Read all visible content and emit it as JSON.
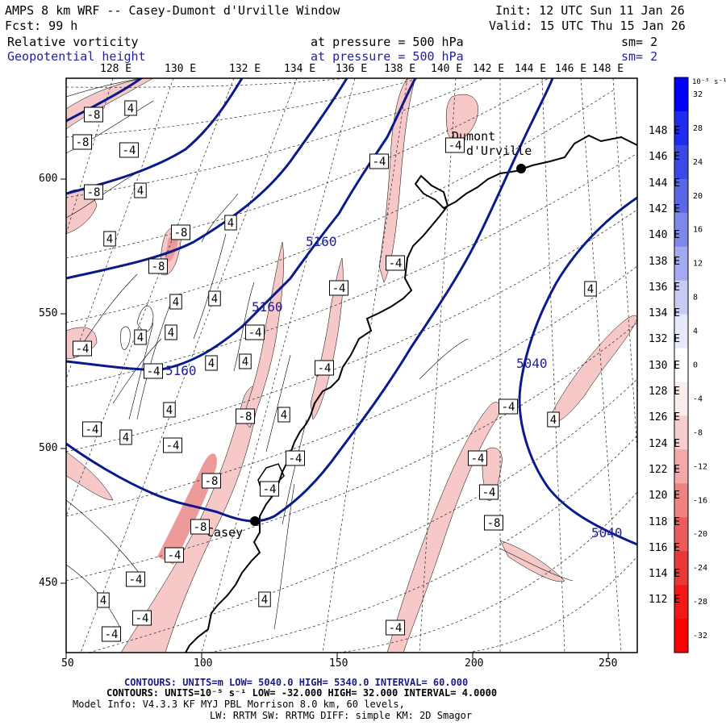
{
  "header": {
    "title": "AMPS 8 km WRF -- Casey-Dumont d'Urville Window",
    "forecast": "Fcst:    99 h",
    "init": "Init: 12 UTC Sun 11 Jan 26",
    "valid": "Valid: 15 UTC Thu 15 Jan 26",
    "field1_name": "Relative vorticity",
    "field1_level": "at pressure =  500 hPa",
    "field1_sm": "sm= 2",
    "field2_name": "Geopotential height",
    "field2_level": "at pressure =  500 hPa",
    "field2_sm": "sm= 2"
  },
  "map": {
    "top_lon_labels": [
      "128 E",
      "130 E",
      "132 E",
      "134 E",
      "136 E",
      "138 E",
      "140 E",
      "142 E",
      "144 E",
      "146 E",
      "148 E"
    ],
    "right_lon_labels": [
      "148 E",
      "146 E",
      "144 E",
      "142 E",
      "140 E",
      "138 E",
      "136 E",
      "134 E",
      "132 E",
      "130 E",
      "128 E",
      "126 E",
      "124 E",
      "122 E",
      "120 E",
      "118 E",
      "116 E",
      "114 E",
      "112 E"
    ],
    "x_ticks": [
      "50",
      "100",
      "150",
      "200",
      "250"
    ],
    "y_ticks": [
      "600",
      "550",
      "500",
      "450"
    ],
    "stations": [
      {
        "name": "Dumont d'Urville"
      },
      {
        "name": "Casey"
      }
    ],
    "height_labels": [
      "5160",
      "5160",
      "5160",
      "5040",
      "5040"
    ],
    "vorticity_labels": [
      "-8",
      "-8",
      "-8",
      "-4",
      "4",
      "4",
      "4",
      "-8",
      "-8",
      "4",
      "4",
      "4",
      "-4",
      "4",
      "-4",
      "4",
      "4",
      "-4",
      "-4",
      "4",
      "4",
      "-8",
      "-8",
      "-8",
      "-4",
      "-4",
      "4",
      "-4",
      "-4",
      "4",
      "-4",
      "4",
      "-4",
      "-4",
      "-4",
      "4",
      "-4",
      "-4",
      "-4",
      "-4",
      "-4",
      "-4",
      "-4",
      "-8",
      "-4",
      "4",
      "4"
    ],
    "colors": {
      "height_contour": "#0a1a8c",
      "coast": "#000000",
      "neg_fill": "#f6c8c8",
      "neg_fill_strong": "#ec9a9a"
    }
  },
  "colorbar": {
    "unit": "10⁻⁵ s⁻¹",
    "levels": [
      "32",
      "28",
      "24",
      "20",
      "16",
      "12",
      "8",
      "4",
      "0",
      "-4",
      "-8",
      "-12",
      "-16",
      "-20",
      "-24",
      "-28",
      "-32"
    ],
    "colors": [
      "#0000ff",
      "#1f2bef",
      "#3a4ae8",
      "#5a68e6",
      "#7d88ea",
      "#a3aaf0",
      "#c7cbf5",
      "#e8eafb",
      "#ffffff",
      "#fdecec",
      "#f8cdcd",
      "#f4a8a8",
      "#f08282",
      "#ec5c5c",
      "#e83838",
      "#f21818",
      "#ff0000"
    ]
  },
  "footer": {
    "line1": "CONTOURS:  UNITS=m  LOW=  5040.0      HIGH=  5340.0      INTERVAL=   60.000",
    "line2": "CONTOURS:  UNITS=10⁻⁵ s⁻¹   LOW= -32.000     HIGH=  32.000      INTERVAL=   4.0000",
    "line3": "Model Info: V4.3.3   KF     MYJ PBL  Morrison               8.0 km,  60 levels,",
    "line4": "LW: RRTM SW: RRTMG   DIFF: simple KM: 2D Smagor"
  }
}
